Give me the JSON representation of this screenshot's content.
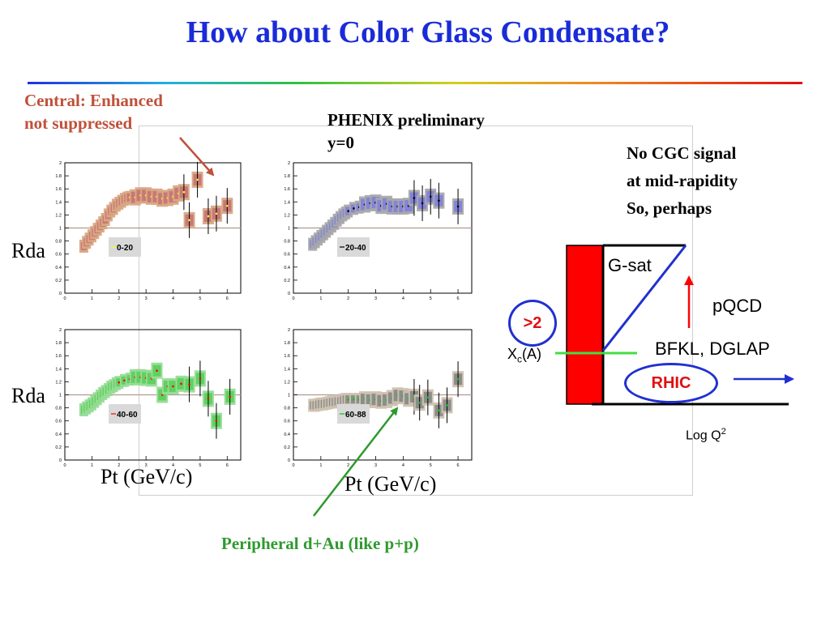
{
  "slide": {
    "title": "How about Color Glass Condensate?",
    "central_note_line1": "Central: Enhanced",
    "central_note_line2": "not suppressed",
    "phenix_line1": "PHENIX preliminary",
    "phenix_line2": "y=0",
    "no_cgc_line1": "No CGC signal",
    "no_cgc_line2": "at mid-rapidity",
    "no_cgc_line3": "So, perhaps",
    "rda_label_1": "Rda",
    "rda_label_2": "Rda",
    "pt_label_1": "Pt (GeV/c)",
    "pt_label_2": "Pt (GeV/c)",
    "peripheral_note": "Peripheral d+Au (like p+p)"
  },
  "diagram": {
    "g_sat": "G-sat",
    "pqcd": "pQCD",
    "bfkl": "BFKL, DGLAP",
    "rhic": "RHIC",
    "gt2": ">2",
    "xc_main": "X",
    "xc_sub": "c",
    "xc_tail": "(A)",
    "logq_main": "Log Q",
    "logq_sup": "2"
  },
  "colors": {
    "title": "#1a2bd8",
    "central_note": "#c0503a",
    "peripheral_note": "#2e9a2e",
    "red_bar": "#ff0000",
    "oval_border": "#2030d0",
    "rhic_text": "#e01010",
    "green_line": "#44dd44",
    "blue_arrow": "#2030d0"
  },
  "panels": [
    {
      "id": "p1",
      "legend": "0-20",
      "box_color": "#c87878",
      "band_color": "#d9a882",
      "point_color": "#ffff00",
      "y_ticks": [
        "2",
        "1.8",
        "1.6",
        "1.4",
        "1.2",
        "1",
        "0.8",
        "0.6",
        "0.4",
        "0.2",
        "0"
      ],
      "x_ticks": [
        "0",
        "1",
        "2",
        "3",
        "4",
        "5",
        "6"
      ],
      "points": [
        [
          0.7,
          0.72
        ],
        [
          0.8,
          0.78
        ],
        [
          0.9,
          0.83
        ],
        [
          1.0,
          0.88
        ],
        [
          1.1,
          0.93
        ],
        [
          1.2,
          0.98
        ],
        [
          1.3,
          1.03
        ],
        [
          1.4,
          1.08
        ],
        [
          1.5,
          1.13
        ],
        [
          1.6,
          1.2
        ],
        [
          1.7,
          1.26
        ],
        [
          1.8,
          1.3
        ],
        [
          1.9,
          1.35
        ],
        [
          2.0,
          1.38
        ],
        [
          2.1,
          1.41
        ],
        [
          2.2,
          1.44
        ],
        [
          2.3,
          1.46
        ],
        [
          2.4,
          1.47
        ],
        [
          2.6,
          1.47
        ],
        [
          2.8,
          1.5
        ],
        [
          3.0,
          1.5
        ],
        [
          3.2,
          1.48
        ],
        [
          3.4,
          1.48
        ],
        [
          3.6,
          1.45
        ],
        [
          3.8,
          1.46
        ],
        [
          4.0,
          1.48
        ],
        [
          4.2,
          1.53
        ],
        [
          4.4,
          1.55
        ],
        [
          4.6,
          1.12
        ],
        [
          4.9,
          1.74
        ],
        [
          5.3,
          1.18
        ],
        [
          5.6,
          1.22
        ],
        [
          6.0,
          1.34
        ]
      ]
    },
    {
      "id": "p2",
      "legend": "20-40",
      "box_color": "#8484d8",
      "band_color": "#a9a9a9",
      "point_color": "#000000",
      "y_ticks": [
        "2",
        "1.8",
        "1.6",
        "1.4",
        "1.2",
        "1",
        "0.8",
        "0.6",
        "0.4",
        "0.2",
        "0"
      ],
      "x_ticks": [
        "0",
        "1",
        "2",
        "3",
        "4",
        "5",
        "6"
      ],
      "points": [
        [
          0.7,
          0.75
        ],
        [
          0.8,
          0.79
        ],
        [
          0.9,
          0.83
        ],
        [
          1.0,
          0.87
        ],
        [
          1.1,
          0.91
        ],
        [
          1.2,
          0.95
        ],
        [
          1.3,
          0.99
        ],
        [
          1.4,
          1.03
        ],
        [
          1.5,
          1.07
        ],
        [
          1.6,
          1.12
        ],
        [
          1.7,
          1.16
        ],
        [
          1.8,
          1.2
        ],
        [
          1.9,
          1.23
        ],
        [
          2.0,
          1.26
        ],
        [
          2.2,
          1.3
        ],
        [
          2.4,
          1.32
        ],
        [
          2.6,
          1.36
        ],
        [
          2.8,
          1.38
        ],
        [
          3.0,
          1.39
        ],
        [
          3.2,
          1.34
        ],
        [
          3.4,
          1.37
        ],
        [
          3.6,
          1.33
        ],
        [
          3.8,
          1.33
        ],
        [
          4.0,
          1.33
        ],
        [
          4.2,
          1.34
        ],
        [
          4.4,
          1.46
        ],
        [
          4.7,
          1.38
        ],
        [
          5.0,
          1.48
        ],
        [
          5.3,
          1.42
        ],
        [
          6.0,
          1.33
        ]
      ]
    },
    {
      "id": "p3",
      "legend": "40-60",
      "box_color": "#60d060",
      "band_color": "#96dc96",
      "point_color": "#ff0000",
      "y_ticks": [
        "2",
        "1.8",
        "1.6",
        "1.4",
        "1.2",
        "1",
        "0.8",
        "0.6",
        "0.4",
        "0.2",
        "0"
      ],
      "x_ticks": [
        "0",
        "1",
        "2",
        "3",
        "4",
        "5",
        "6"
      ],
      "points": [
        [
          0.7,
          0.77
        ],
        [
          0.8,
          0.8
        ],
        [
          0.9,
          0.83
        ],
        [
          1.0,
          0.86
        ],
        [
          1.1,
          0.9
        ],
        [
          1.2,
          0.94
        ],
        [
          1.3,
          0.98
        ],
        [
          1.4,
          1.02
        ],
        [
          1.5,
          1.05
        ],
        [
          1.6,
          1.08
        ],
        [
          1.7,
          1.12
        ],
        [
          1.8,
          1.14
        ],
        [
          1.9,
          1.17
        ],
        [
          2.0,
          1.19
        ],
        [
          2.2,
          1.22
        ],
        [
          2.4,
          1.24
        ],
        [
          2.6,
          1.27
        ],
        [
          2.8,
          1.27
        ],
        [
          3.0,
          1.26
        ],
        [
          3.2,
          1.25
        ],
        [
          3.4,
          1.37
        ],
        [
          3.6,
          1.0
        ],
        [
          3.8,
          1.13
        ],
        [
          4.0,
          1.13
        ],
        [
          4.3,
          1.17
        ],
        [
          4.6,
          1.16
        ],
        [
          5.0,
          1.25
        ],
        [
          5.3,
          0.94
        ],
        [
          5.6,
          0.6
        ],
        [
          6.1,
          0.97
        ]
      ]
    },
    {
      "id": "p4",
      "legend": "60-88",
      "box_color": "#8c8c8c",
      "band_color": "#cfc2b0",
      "point_color": "#00cc00",
      "y_ticks": [
        "2",
        "1.8",
        "1.6",
        "1.4",
        "1.2",
        "1",
        "0.8",
        "0.6",
        "0.4",
        "0.2",
        "0"
      ],
      "x_ticks": [
        "0",
        "1",
        "2",
        "3",
        "4",
        "5",
        "6"
      ],
      "points": [
        [
          0.7,
          0.84
        ],
        [
          0.8,
          0.84
        ],
        [
          0.9,
          0.85
        ],
        [
          1.0,
          0.86
        ],
        [
          1.1,
          0.86
        ],
        [
          1.2,
          0.87
        ],
        [
          1.3,
          0.88
        ],
        [
          1.4,
          0.89
        ],
        [
          1.5,
          0.89
        ],
        [
          1.6,
          0.9
        ],
        [
          1.7,
          0.9
        ],
        [
          1.8,
          0.92
        ],
        [
          1.9,
          0.93
        ],
        [
          2.0,
          0.93
        ],
        [
          2.2,
          0.93
        ],
        [
          2.4,
          0.93
        ],
        [
          2.6,
          0.93
        ],
        [
          2.8,
          0.92
        ],
        [
          3.0,
          0.93
        ],
        [
          3.2,
          0.91
        ],
        [
          3.4,
          0.92
        ],
        [
          3.6,
          0.95
        ],
        [
          3.8,
          0.99
        ],
        [
          4.0,
          0.98
        ],
        [
          4.2,
          0.94
        ],
        [
          4.4,
          0.97
        ],
        [
          4.6,
          0.88
        ],
        [
          4.9,
          0.96
        ],
        [
          5.3,
          0.76
        ],
        [
          5.6,
          0.84
        ],
        [
          6.0,
          1.24
        ]
      ]
    }
  ]
}
